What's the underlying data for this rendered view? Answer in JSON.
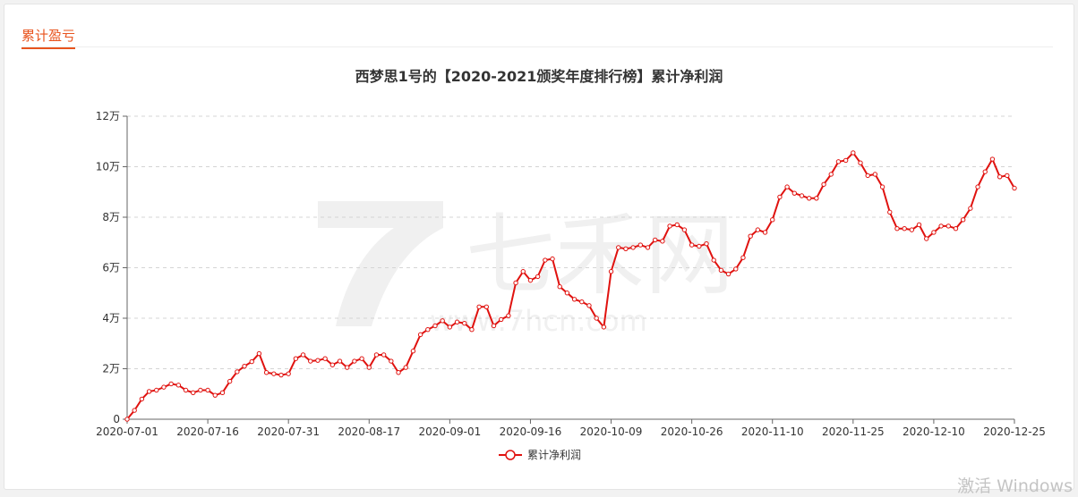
{
  "panel": {
    "section_title": "累计盈亏"
  },
  "watermark": {
    "brand": "七禾网",
    "url": "www.7hcn.com"
  },
  "overlay": {
    "activation_text": "激活 Windows"
  },
  "colors": {
    "accent": "#e8541e",
    "series": "#e0120f"
  },
  "chart_data": {
    "type": "line",
    "title": "西梦思1号的【2020-2021颁奖年度排行榜】累计净利润",
    "xlabel": "",
    "ylabel": "",
    "ylim": [
      0,
      120000
    ],
    "yticks": [
      0,
      20000,
      40000,
      60000,
      80000,
      100000,
      120000
    ],
    "ytick_labels": [
      "0",
      "2万",
      "4万",
      "6万",
      "8万",
      "10万",
      "12万"
    ],
    "xtick_labels": [
      "2020-07-01",
      "2020-07-16",
      "2020-07-31",
      "2020-08-17",
      "2020-09-01",
      "2020-09-16",
      "2020-10-09",
      "2020-10-26",
      "2020-11-10",
      "2020-11-25",
      "2020-12-10",
      "2020-12-25"
    ],
    "grid": true,
    "legend_position": "bottom-center",
    "series": [
      {
        "name": "累计净利润",
        "values": [
          0,
          3500,
          8000,
          11000,
          11500,
          12700,
          14000,
          13500,
          11500,
          10500,
          11500,
          11500,
          9500,
          10500,
          15000,
          18800,
          21000,
          22800,
          26000,
          18500,
          18000,
          17500,
          18000,
          24000,
          25500,
          23000,
          23300,
          24000,
          21500,
          23000,
          20500,
          23000,
          24000,
          20500,
          25500,
          25500,
          23000,
          18500,
          20500,
          27000,
          33500,
          35500,
          37000,
          39000,
          36500,
          38500,
          38000,
          35500,
          44500,
          44500,
          37000,
          39500,
          41000,
          54000,
          58500,
          55000,
          56500,
          63000,
          63500,
          52500,
          50000,
          47500,
          46500,
          45000,
          40000,
          36500,
          58500,
          68000,
          67500,
          68000,
          69000,
          68000,
          71000,
          70500,
          76500,
          77000,
          75000,
          69000,
          68500,
          69500,
          63000,
          59000,
          57500,
          59500,
          64000,
          72500,
          75000,
          74000,
          79000,
          88000,
          92000,
          89500,
          88500,
          87500,
          87500,
          93000,
          97000,
          102000,
          102500,
          105500,
          101500,
          96500,
          97000,
          92000,
          82000,
          75500,
          75500,
          75000,
          77000,
          71500,
          74000,
          76500,
          76500,
          75500,
          79000,
          83500,
          92000,
          98000,
          103000,
          96000,
          96500,
          91500
        ]
      }
    ]
  }
}
